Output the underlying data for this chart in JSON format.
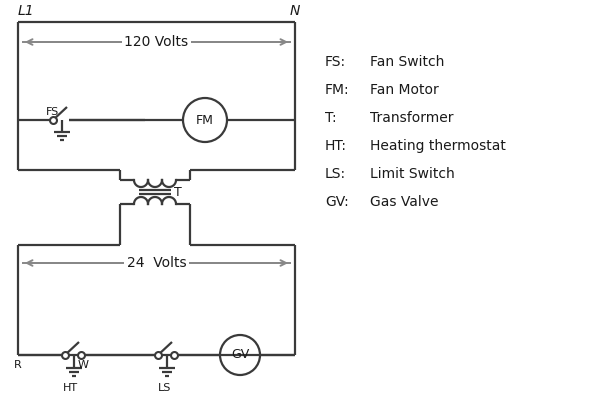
{
  "bg_color": "#ffffff",
  "line_color": "#3a3a3a",
  "text_color": "#1a1a1a",
  "arrow_color": "#888888",
  "legend_items": [
    [
      "FS:",
      "Fan Switch"
    ],
    [
      "FM:",
      "Fan Motor"
    ],
    [
      "T:",
      "Transformer"
    ],
    [
      "HT:",
      "Heating thermostat"
    ],
    [
      "LS:",
      "Limit Switch"
    ],
    [
      "GV:",
      "Gas Valve"
    ]
  ],
  "volts_120": "120 Volts",
  "volts_24": "24  Volts",
  "label_T": "T",
  "label_FS": "FS",
  "label_FM": "FM",
  "label_R": "R",
  "label_W": "W",
  "label_HT": "HT",
  "label_LS": "LS",
  "label_GV": "GV",
  "label_L1": "L1",
  "label_N": "N"
}
